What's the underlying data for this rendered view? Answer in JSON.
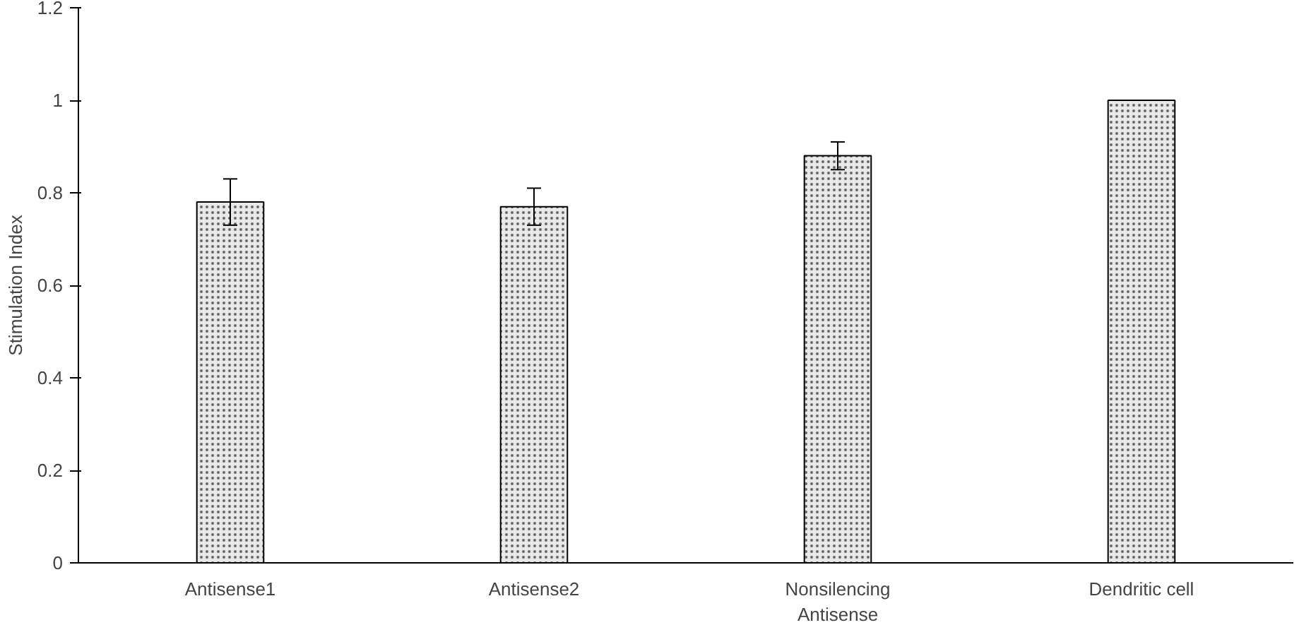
{
  "chart_data": {
    "type": "bar",
    "ylabel": "Stimulation Index",
    "categories": [
      "Antisense1",
      "Antisense2",
      "Nonsilencing\nAntisense",
      "Dendritic cell"
    ],
    "values": [
      0.78,
      0.77,
      0.88,
      1.0
    ],
    "errors": [
      0.05,
      0.04,
      0.03,
      null
    ],
    "color": "#e8e8e8",
    "ylim": [
      0,
      1.2
    ],
    "yticks": [
      0,
      0.2,
      0.4,
      0.6,
      0.8,
      1,
      1.2
    ],
    "grid": false
  }
}
